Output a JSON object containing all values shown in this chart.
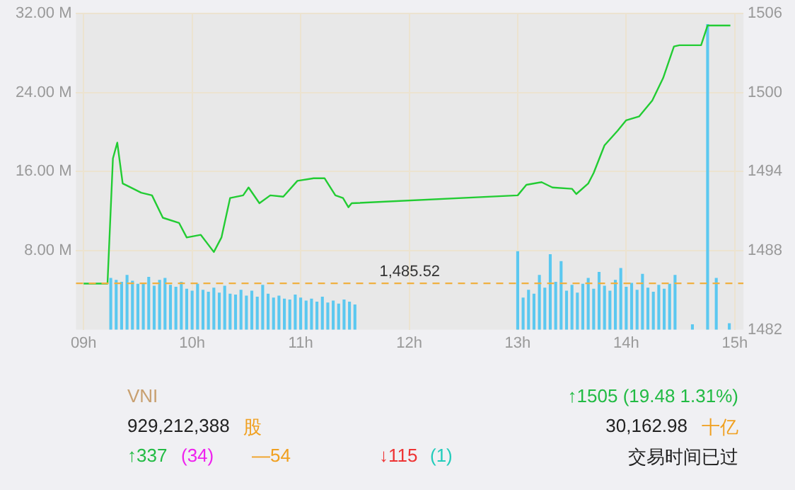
{
  "chart_data": {
    "type": "line",
    "xlim": [
      8.93,
      15.08
    ],
    "xticks": [
      {
        "value": 9,
        "label": "09h"
      },
      {
        "value": 10,
        "label": "10h"
      },
      {
        "value": 11,
        "label": "11h"
      },
      {
        "value": 12,
        "label": "12h"
      },
      {
        "value": 13,
        "label": "13h"
      },
      {
        "value": 14,
        "label": "14h"
      },
      {
        "value": 15,
        "label": "15h"
      }
    ],
    "ylim": [
      0,
      32
    ],
    "yticks": [
      {
        "value": 8,
        "label": "8.00 M"
      },
      {
        "value": 16,
        "label": "16.00 M"
      },
      {
        "value": 24,
        "label": "24.00 M"
      },
      {
        "value": 32,
        "label": "32.00 M"
      }
    ],
    "y2lim": [
      1482,
      1506
    ],
    "y2ticks": [
      1482,
      1488,
      1494,
      1500,
      1506
    ],
    "grid": true,
    "legend": false,
    "marker": "none",
    "series": [
      {
        "type": "bar",
        "axis": "y",
        "color": "#5bc8f0",
        "x": [
          9.25,
          9.3,
          9.35,
          9.4,
          9.45,
          9.5,
          9.55,
          9.6,
          9.65,
          9.7,
          9.75,
          9.8,
          9.85,
          9.9,
          9.95,
          10.0,
          10.05,
          10.1,
          10.15,
          10.2,
          10.25,
          10.3,
          10.35,
          10.4,
          10.45,
          10.5,
          10.55,
          10.6,
          10.65,
          10.7,
          10.75,
          10.8,
          10.85,
          10.9,
          10.95,
          11.0,
          11.05,
          11.1,
          11.15,
          11.2,
          11.25,
          11.3,
          11.35,
          11.4,
          11.45,
          11.5,
          13.0,
          13.05,
          13.1,
          13.15,
          13.2,
          13.25,
          13.3,
          13.35,
          13.4,
          13.45,
          13.5,
          13.55,
          13.6,
          13.65,
          13.7,
          13.75,
          13.8,
          13.85,
          13.9,
          13.95,
          14.0,
          14.05,
          14.1,
          14.15,
          14.2,
          14.25,
          14.3,
          14.35,
          14.4,
          14.45,
          14.61,
          14.75,
          14.83,
          14.95
        ],
        "values": [
          5.2,
          5.0,
          4.8,
          5.5,
          4.9,
          4.6,
          4.7,
          5.3,
          4.4,
          5.0,
          5.2,
          4.5,
          4.3,
          4.8,
          4.1,
          3.9,
          4.6,
          4.0,
          3.8,
          4.2,
          3.7,
          4.4,
          3.6,
          3.5,
          4.0,
          3.4,
          3.9,
          3.3,
          4.5,
          3.6,
          3.2,
          3.4,
          3.1,
          3.0,
          3.5,
          3.2,
          2.9,
          3.1,
          2.8,
          3.3,
          2.7,
          2.9,
          2.6,
          3.0,
          2.8,
          2.5,
          7.9,
          3.2,
          4.0,
          3.6,
          5.5,
          4.2,
          7.6,
          4.8,
          6.9,
          3.9,
          4.5,
          3.7,
          4.6,
          5.2,
          4.1,
          5.8,
          4.4,
          3.9,
          5.0,
          6.2,
          4.3,
          4.7,
          4.0,
          5.6,
          4.2,
          3.8,
          4.5,
          4.1,
          4.6,
          5.5,
          0.5,
          30.9,
          5.2,
          0.6
        ]
      },
      {
        "axis": "y2",
        "color": "#22cc33",
        "x": [
          9.0,
          9.22,
          9.27,
          9.31,
          9.36,
          9.41,
          9.53,
          9.63,
          9.73,
          9.88,
          9.95,
          10.08,
          10.2,
          10.27,
          10.35,
          10.47,
          10.52,
          10.62,
          10.72,
          10.84,
          10.97,
          11.12,
          11.22,
          11.32,
          11.39,
          11.44,
          11.47,
          13.0,
          13.08,
          13.22,
          13.32,
          13.5,
          13.54,
          13.65,
          13.7,
          13.8,
          13.92,
          14.0,
          14.12,
          14.24,
          14.34,
          14.44,
          14.49,
          14.69,
          14.75,
          14.96
        ],
        "values": [
          1485.5,
          1485.5,
          1495.0,
          1496.2,
          1493.1,
          1492.9,
          1492.4,
          1492.2,
          1490.5,
          1490.1,
          1489.0,
          1489.2,
          1487.9,
          1489.0,
          1492.0,
          1492.2,
          1492.8,
          1491.6,
          1492.2,
          1492.1,
          1493.3,
          1493.5,
          1493.5,
          1492.2,
          1492.0,
          1491.3,
          1491.6,
          1492.2,
          1493.0,
          1493.2,
          1492.8,
          1492.7,
          1492.3,
          1493.1,
          1493.9,
          1496.0,
          1497.1,
          1497.9,
          1498.2,
          1499.4,
          1501.1,
          1503.5,
          1503.6,
          1503.6,
          1505.1,
          1505.1
        ]
      }
    ],
    "ref_lines": [
      {
        "axis": "y2",
        "value": 1485.52,
        "label": "1,485.52",
        "color": "#f0b040",
        "line_style": "dashed"
      }
    ],
    "annotations": [
      "VNI",
      "↑1505  (19.48  1.31%)",
      "929,212,388",
      "股",
      "30,162.98",
      "十亿",
      "↑337",
      "(34)",
      "—54",
      "↓115",
      "(1)",
      "交易时间已过"
    ]
  }
}
